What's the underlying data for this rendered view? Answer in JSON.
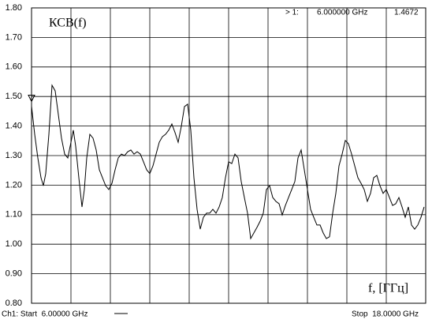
{
  "chart_data": {
    "type": "line",
    "title": "КСВ(f)",
    "x_label": "f, [ГГц]",
    "start_label": "Ch1: Start  6.00000 GHz",
    "stop_label": "Stop  18.0000 GHz",
    "marker": {
      "label": "> 1:",
      "x": 6,
      "x_label": "6.000000 GHz",
      "value": 1.4672,
      "value_label": "1.4672"
    },
    "xlim": [
      6,
      18
    ],
    "ylim": [
      0.8,
      1.8
    ],
    "yticks": [
      {
        "value": 0.8,
        "label": "0.80"
      },
      {
        "value": 0.9,
        "label": "0.90"
      },
      {
        "value": 1.0,
        "label": "1.00"
      },
      {
        "value": 1.1,
        "label": "1.10"
      },
      {
        "value": 1.2,
        "label": "1.20"
      },
      {
        "value": 1.3,
        "label": "1.30"
      },
      {
        "value": 1.4,
        "label": "1.40"
      },
      {
        "value": 1.5,
        "label": "1.50"
      },
      {
        "value": 1.6,
        "label": "1.60"
      },
      {
        "value": 1.7,
        "label": "1.70"
      },
      {
        "value": 1.8,
        "label": "1.80"
      }
    ],
    "grid": true,
    "color": "#000000",
    "x": [
      6.0,
      6.096,
      6.192,
      6.288,
      6.36,
      6.432,
      6.528,
      6.624,
      6.72,
      6.816,
      6.912,
      7.008,
      7.104,
      7.2,
      7.272,
      7.344,
      7.44,
      7.536,
      7.608,
      7.68,
      7.776,
      7.872,
      7.968,
      8.064,
      8.16,
      8.256,
      8.352,
      8.448,
      8.544,
      8.64,
      8.736,
      8.832,
      8.928,
      9.024,
      9.12,
      9.216,
      9.312,
      9.408,
      9.504,
      9.6,
      9.696,
      9.792,
      9.888,
      9.984,
      10.08,
      10.176,
      10.272,
      10.368,
      10.464,
      10.56,
      10.656,
      10.752,
      10.848,
      10.944,
      11.04,
      11.136,
      11.232,
      11.328,
      11.424,
      11.52,
      11.616,
      11.712,
      11.808,
      11.904,
      12.0,
      12.096,
      12.192,
      12.288,
      12.384,
      12.48,
      12.576,
      12.672,
      12.768,
      12.864,
      12.96,
      13.056,
      13.152,
      13.248,
      13.344,
      13.44,
      13.536,
      13.632,
      13.728,
      13.824,
      13.92,
      14.016,
      14.112,
      14.208,
      14.304,
      14.4,
      14.496,
      14.592,
      14.688,
      14.784,
      14.88,
      14.976,
      15.072,
      15.168,
      15.264,
      15.36,
      15.456,
      15.552,
      15.648,
      15.744,
      15.84,
      15.936,
      16.032,
      16.128,
      16.224,
      16.32,
      16.416,
      16.512,
      16.608,
      16.704,
      16.8,
      16.896,
      16.992,
      17.088,
      17.184,
      17.28,
      17.376,
      17.472,
      17.568,
      17.664,
      17.76,
      17.856,
      17.952
    ],
    "values": [
      1.467,
      1.372,
      1.292,
      1.225,
      1.198,
      1.239,
      1.372,
      1.538,
      1.519,
      1.439,
      1.359,
      1.305,
      1.292,
      1.345,
      1.386,
      1.332,
      1.225,
      1.126,
      1.185,
      1.292,
      1.372,
      1.359,
      1.319,
      1.252,
      1.225,
      1.198,
      1.185,
      1.206,
      1.252,
      1.292,
      1.305,
      1.3,
      1.313,
      1.319,
      1.305,
      1.313,
      1.305,
      1.279,
      1.252,
      1.239,
      1.265,
      1.305,
      1.345,
      1.364,
      1.372,
      1.386,
      1.407,
      1.378,
      1.345,
      1.399,
      1.466,
      1.474,
      1.386,
      1.225,
      1.118,
      1.051,
      1.091,
      1.105,
      1.105,
      1.118,
      1.105,
      1.126,
      1.158,
      1.225,
      1.279,
      1.273,
      1.305,
      1.292,
      1.212,
      1.158,
      1.105,
      1.019,
      1.038,
      1.057,
      1.078,
      1.105,
      1.185,
      1.198,
      1.158,
      1.145,
      1.137,
      1.099,
      1.131,
      1.158,
      1.185,
      1.212,
      1.292,
      1.319,
      1.252,
      1.185,
      1.118,
      1.091,
      1.065,
      1.065,
      1.038,
      1.019,
      1.025,
      1.105,
      1.172,
      1.265,
      1.305,
      1.351,
      1.34,
      1.305,
      1.265,
      1.225,
      1.206,
      1.185,
      1.145,
      1.172,
      1.225,
      1.233,
      1.198,
      1.172,
      1.185,
      1.158,
      1.131,
      1.137,
      1.158,
      1.126,
      1.091,
      1.126,
      1.065,
      1.051,
      1.065,
      1.091,
      1.126
    ]
  }
}
